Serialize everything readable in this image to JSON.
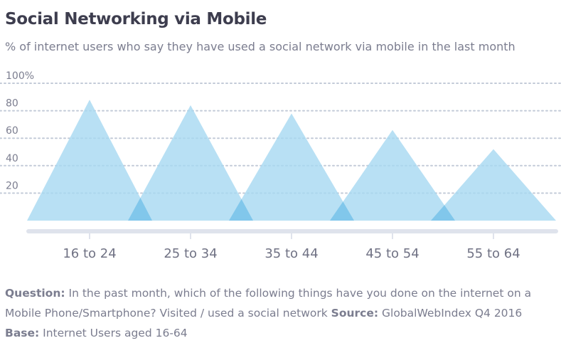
{
  "title": "Social Networking via Mobile",
  "subtitle": "% of internet users who say they have used a social network via mobile in the last month",
  "chart_data": {
    "type": "area",
    "categories": [
      "16 to 24",
      "25 to 34",
      "35 to 44",
      "45 to 54",
      "55 to 64"
    ],
    "values": [
      88,
      84,
      78,
      66,
      52
    ],
    "ylim": [
      0,
      100
    ],
    "yticks": [
      "20",
      "40",
      "60",
      "80",
      "100%"
    ],
    "grid": true,
    "colors": {
      "fill": "#a6d8f1",
      "overlap": "#7cc4ea",
      "grid": "#c3cbd8",
      "axis": "#dfe3ec",
      "tick_label": "#7b7d8f",
      "category_label": "#707284"
    }
  },
  "footnote": {
    "question_label": "Question:",
    "question_text": "In the past month, which of the following things have you done on the internet on a Mobile Phone/Smartphone? Visited / used a social network",
    "source_label": "Source:",
    "source_text": "GlobalWebIndex Q4 2016",
    "base_label": "Base:",
    "base_text": "Internet Users aged 16-64"
  }
}
